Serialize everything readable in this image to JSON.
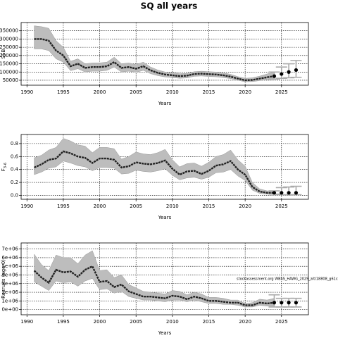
{
  "title": "SQ all years",
  "chart_data": [
    {
      "type": "line",
      "ylabel": "SSB",
      "xlabel": "Years",
      "x": [
        1991,
        1992,
        1993,
        1994,
        1995,
        1996,
        1997,
        1998,
        1999,
        2000,
        2001,
        2002,
        2003,
        2004,
        2005,
        2006,
        2007,
        2008,
        2009,
        2010,
        2011,
        2012,
        2013,
        2014,
        2015,
        2016,
        2017,
        2018,
        2019,
        2020,
        2021,
        2022,
        2023,
        2024
      ],
      "values": [
        300000,
        300000,
        290000,
        230000,
        200000,
        135000,
        150000,
        125000,
        130000,
        130000,
        135000,
        160000,
        125000,
        130000,
        120000,
        135000,
        110000,
        95000,
        85000,
        80000,
        75000,
        78000,
        88000,
        90000,
        87000,
        85000,
        80000,
        72000,
        60000,
        50000,
        52000,
        60000,
        68000,
        75000
      ],
      "upper": [
        380000,
        375000,
        365000,
        290000,
        250000,
        165000,
        180000,
        150000,
        155000,
        155000,
        160000,
        190000,
        150000,
        155000,
        145000,
        160000,
        130000,
        112000,
        100000,
        95000,
        90000,
        92000,
        102000,
        105000,
        102000,
        100000,
        95000,
        86000,
        72000,
        62000,
        65000,
        75000,
        88000,
        100000
      ],
      "lower": [
        240000,
        240000,
        230000,
        180000,
        160000,
        108000,
        120000,
        100000,
        105000,
        105000,
        110000,
        130000,
        100000,
        105000,
        98000,
        110000,
        90000,
        78000,
        70000,
        66000,
        62000,
        64000,
        74000,
        76000,
        73000,
        71000,
        66000,
        60000,
        50000,
        41000,
        42000,
        48000,
        53000,
        57000
      ],
      "forecast_x": [
        2024,
        2025,
        2026,
        2027
      ],
      "forecast_values": [
        75000,
        88000,
        100000,
        112000
      ],
      "forecast_lower": [
        57000,
        62000,
        65000,
        68000
      ],
      "forecast_upper": [
        100000,
        130000,
        150000,
        170000
      ],
      "xlim": [
        1989.2,
        2028.7
      ],
      "xticks": [
        1990,
        1995,
        2000,
        2005,
        2010,
        2015,
        2020,
        2025
      ],
      "ylim": [
        20000,
        400000
      ],
      "yticks": [
        50000,
        100000,
        150000,
        200000,
        250000,
        300000,
        350000
      ],
      "grid": true,
      "color": "#222222",
      "band_color": "#bdbdbd",
      "forecast_color": "#aaaaaa"
    },
    {
      "type": "line",
      "ylabel": "F",
      "ylabel_sub": "3-6",
      "xlabel": "Years",
      "x": [
        1991,
        1992,
        1993,
        1994,
        1995,
        1996,
        1997,
        1998,
        1999,
        2000,
        2001,
        2002,
        2003,
        2004,
        2005,
        2006,
        2007,
        2008,
        2009,
        2010,
        2011,
        2012,
        2013,
        2014,
        2015,
        2016,
        2017,
        2018,
        2019,
        2020,
        2021,
        2022,
        2023,
        2024
      ],
      "values": [
        0.43,
        0.48,
        0.55,
        0.57,
        0.68,
        0.65,
        0.6,
        0.58,
        0.5,
        0.57,
        0.57,
        0.55,
        0.43,
        0.45,
        0.51,
        0.49,
        0.48,
        0.5,
        0.54,
        0.41,
        0.32,
        0.37,
        0.38,
        0.33,
        0.38,
        0.46,
        0.48,
        0.53,
        0.4,
        0.32,
        0.13,
        0.06,
        0.04,
        0.04
      ],
      "upper": [
        0.58,
        0.62,
        0.7,
        0.74,
        0.88,
        0.84,
        0.78,
        0.76,
        0.66,
        0.74,
        0.74,
        0.72,
        0.56,
        0.6,
        0.67,
        0.64,
        0.63,
        0.66,
        0.71,
        0.55,
        0.44,
        0.49,
        0.5,
        0.45,
        0.51,
        0.6,
        0.63,
        0.7,
        0.55,
        0.45,
        0.2,
        0.1,
        0.07,
        0.07
      ],
      "lower": [
        0.32,
        0.36,
        0.42,
        0.44,
        0.53,
        0.5,
        0.46,
        0.44,
        0.38,
        0.43,
        0.43,
        0.42,
        0.33,
        0.34,
        0.39,
        0.37,
        0.36,
        0.38,
        0.41,
        0.31,
        0.24,
        0.27,
        0.28,
        0.25,
        0.28,
        0.35,
        0.36,
        0.4,
        0.3,
        0.23,
        0.08,
        0.03,
        0.02,
        0.02
      ],
      "forecast_x": [
        2024,
        2025,
        2026,
        2027
      ],
      "forecast_values": [
        0.04,
        0.04,
        0.04,
        0.04
      ],
      "forecast_lower": [
        0.02,
        0.01,
        0.01,
        0.01
      ],
      "forecast_upper": [
        0.07,
        0.12,
        0.13,
        0.14
      ],
      "xlim": [
        1989.2,
        2028.7
      ],
      "xticks": [
        1990,
        1995,
        2000,
        2005,
        2010,
        2015,
        2020,
        2025
      ],
      "ylim": [
        -0.06,
        0.94
      ],
      "yticks": [
        {
          "value": 0,
          "label": "0.0"
        },
        0.2,
        0.4,
        0.6,
        0.8
      ],
      "grid": true,
      "color": "#222222",
      "band_color": "#bdbdbd",
      "forecast_color": "#aaaaaa"
    },
    {
      "type": "line",
      "ylabel": "Recruits (age 0)",
      "xlabel": "Years",
      "annotation": "stockassessment.org WBSS_HAWG_2025_alt/18808_g61cc",
      "x": [
        1991,
        1992,
        1993,
        1994,
        1995,
        1996,
        1997,
        1998,
        1999,
        2000,
        2001,
        2002,
        2003,
        2004,
        2005,
        2006,
        2007,
        2008,
        2009,
        2010,
        2011,
        2012,
        2013,
        2014,
        2015,
        2016,
        2017,
        2018,
        2019,
        2020,
        2021,
        2022,
        2023,
        2024
      ],
      "values": [
        4500000,
        3700000,
        3100000,
        4600000,
        4300000,
        4400000,
        3800000,
        4600000,
        5000000,
        3200000,
        3300000,
        2600000,
        2900000,
        2100000,
        1800000,
        1500000,
        1500000,
        1400000,
        1300000,
        1600000,
        1500000,
        1200000,
        1500000,
        1300000,
        1000000,
        1000000,
        900000,
        800000,
        800000,
        500000,
        500000,
        800000,
        700000,
        800000
      ],
      "upper": [
        6400000,
        5200000,
        4500000,
        6300000,
        6000000,
        6000000,
        5300000,
        6300000,
        6800000,
        4500000,
        4600000,
        3700000,
        4000000,
        2900000,
        2500000,
        2100000,
        2000000,
        1900000,
        1800000,
        2200000,
        2100000,
        1700000,
        2000000,
        1800000,
        1400000,
        1400000,
        1300000,
        1100000,
        1100000,
        700000,
        800000,
        1200000,
        1100000,
        1300000
      ],
      "lower": [
        3200000,
        2700000,
        2200000,
        3300000,
        3100000,
        3200000,
        2700000,
        3300000,
        3600000,
        2300000,
        2400000,
        1900000,
        2100000,
        1500000,
        1300000,
        1100000,
        1100000,
        1000000,
        900000,
        1100000,
        1100000,
        900000,
        1100000,
        900000,
        700000,
        700000,
        600000,
        600000,
        500000,
        300000,
        300000,
        500000,
        400000,
        400000
      ],
      "forecast_x": [
        2024,
        2025,
        2026,
        2027
      ],
      "forecast_values": [
        800000,
        800000,
        800000,
        800000
      ],
      "forecast_lower": [
        300000,
        300000,
        300000,
        300000
      ],
      "forecast_upper": [
        1700000,
        1300000,
        1300000,
        1300000
      ],
      "xlim": [
        1989.2,
        2028.7
      ],
      "xticks": [
        1990,
        1995,
        2000,
        2005,
        2010,
        2015,
        2020,
        2025
      ],
      "ylim": [
        -600000,
        7700000
      ],
      "yticks": [
        {
          "value": 0,
          "label": "0e+00"
        },
        {
          "value": 1000000,
          "label": "1e+06"
        },
        {
          "value": 2000000,
          "label": "2e+06"
        },
        {
          "value": 3000000,
          "label": "3e+06"
        },
        {
          "value": 4000000,
          "label": "4e+06"
        },
        {
          "value": 5000000,
          "label": "5e+06"
        },
        {
          "value": 6000000,
          "label": "6e+06"
        },
        {
          "value": 7000000,
          "label": "7e+06"
        }
      ],
      "grid": true,
      "color": "#222222",
      "band_color": "#bdbdbd",
      "forecast_color": "#aaaaaa"
    }
  ]
}
